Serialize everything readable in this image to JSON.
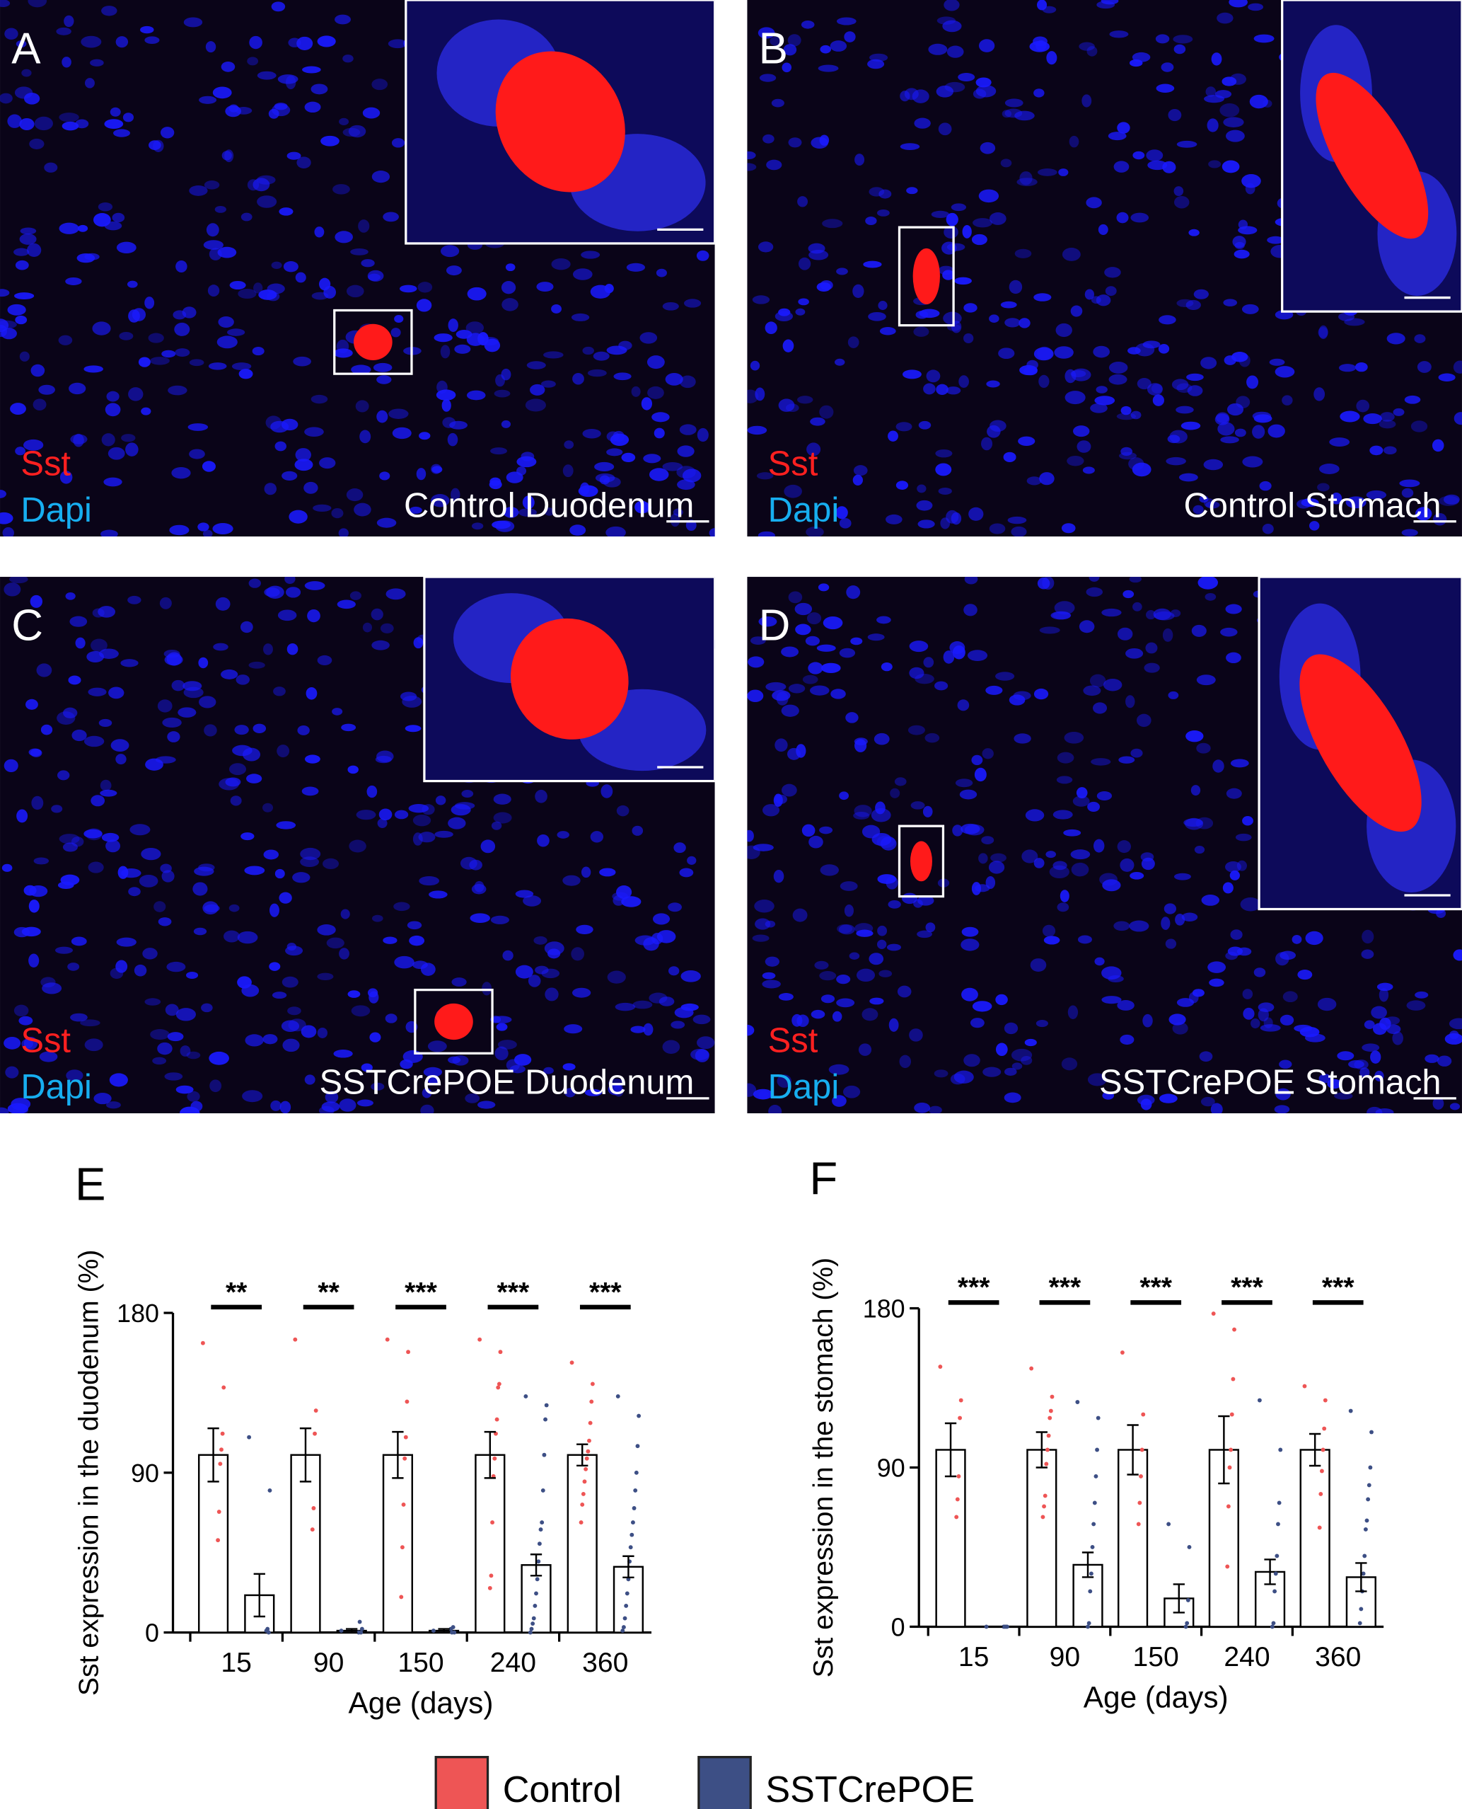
{
  "panels": [
    {
      "letter": "A",
      "labels": [
        "Sst",
        "Dapi"
      ],
      "caption": "Control Duodenum"
    },
    {
      "letter": "B",
      "labels": [
        "Sst",
        "Dapi"
      ],
      "caption": "Control Stomach"
    },
    {
      "letter": "C",
      "labels": [
        "Sst",
        "Dapi"
      ],
      "caption": "SSTCrePOE Duodenum"
    },
    {
      "letter": "D",
      "labels": [
        "Sst",
        "Dapi"
      ],
      "caption": "SSTCrePOE Stomach"
    }
  ],
  "chart_data": [
    {
      "type": "bar",
      "panel_label": "E",
      "ylabel": "Sst expression in the duodenum (%)",
      "xlabel": "Age (days)",
      "categories": [
        "15",
        "90",
        "150",
        "240",
        "360"
      ],
      "ylim": [
        0,
        180
      ],
      "yticks": [
        0,
        90,
        180
      ],
      "significance": [
        "**",
        "**",
        "***",
        "***",
        "***"
      ],
      "series": [
        {
          "name": "Control",
          "color": "#ee5555",
          "values": [
            100,
            100,
            100,
            100,
            100
          ],
          "errors": [
            15,
            15,
            13,
            13,
            6
          ],
          "points": [
            [
              163,
              138,
              112,
              103,
              95,
              68,
              52
            ],
            [
              165,
              125,
              112,
              70,
              58
            ],
            [
              165,
              158,
              130,
              110,
              98,
              72,
              48,
              20
            ],
            [
              165,
              158,
              140,
              138,
              120,
              112,
              98,
              88,
              62,
              32,
              25
            ],
            [
              152,
              140,
              130,
              118,
              108,
              102,
              98,
              92,
              85,
              78,
              72,
              62
            ]
          ]
        },
        {
          "name": "SSTCrePOE",
          "color": "#3d4f85",
          "values": [
            21,
            1,
            1,
            38,
            37
          ],
          "errors": [
            12,
            1,
            1,
            6,
            6
          ],
          "points": [
            [
              110,
              80,
              0,
              2,
              1
            ],
            [
              1,
              2,
              0,
              6,
              0
            ],
            [
              1,
              0,
              3,
              0,
              2
            ],
            [
              133,
              128,
              120,
              100,
              80,
              62,
              58,
              50,
              40,
              30,
              22,
              15,
              8,
              5,
              2,
              0
            ],
            [
              133,
              122,
              105,
              90,
              80,
              70,
              62,
              55,
              48,
              40,
              30,
              22,
              15,
              8,
              3,
              1
            ]
          ]
        }
      ]
    },
    {
      "type": "bar",
      "panel_label": "F",
      "ylabel": "Sst expression in the stomach (%)",
      "xlabel": "Age (days)",
      "categories": [
        "15",
        "90",
        "150",
        "240",
        "360"
      ],
      "ylim": [
        0,
        180
      ],
      "yticks": [
        0,
        90,
        180
      ],
      "significance": [
        "***",
        "***",
        "***",
        "***",
        "***"
      ],
      "series": [
        {
          "name": "Control",
          "color": "#ee5555",
          "values": [
            100,
            100,
            100,
            100,
            100
          ],
          "errors": [
            15,
            10,
            14,
            19,
            9
          ],
          "points": [
            [
              147,
              128,
              118,
              85,
              72,
              62
            ],
            [
              146,
              130,
              122,
              118,
              108,
              100,
              92,
              74,
              68,
              62
            ],
            [
              155,
              120,
              100,
              85,
              70,
              58
            ],
            [
              177,
              168,
              140,
              120,
              100,
              90,
              68,
              34
            ],
            [
              136,
              128,
              112,
              100,
              88,
              75,
              56
            ]
          ]
        },
        {
          "name": "SSTCrePOE",
          "color": "#3d4f85",
          "values": [
            0,
            35,
            16,
            31,
            28
          ],
          "errors": [
            0,
            7,
            8,
            7,
            8
          ],
          "points": [
            [
              0,
              0,
              0,
              0,
              0
            ],
            [
              127,
              118,
              100,
              85,
              70,
              58,
              45,
              30,
              20,
              2,
              0
            ],
            [
              58,
              45,
              15,
              2,
              0
            ],
            [
              128,
              100,
              70,
              58,
              40,
              30,
              20,
              2,
              0
            ],
            [
              122,
              110,
              90,
              80,
              72,
              60,
              55,
              40,
              30,
              20,
              10,
              2
            ]
          ]
        }
      ]
    }
  ]
}
